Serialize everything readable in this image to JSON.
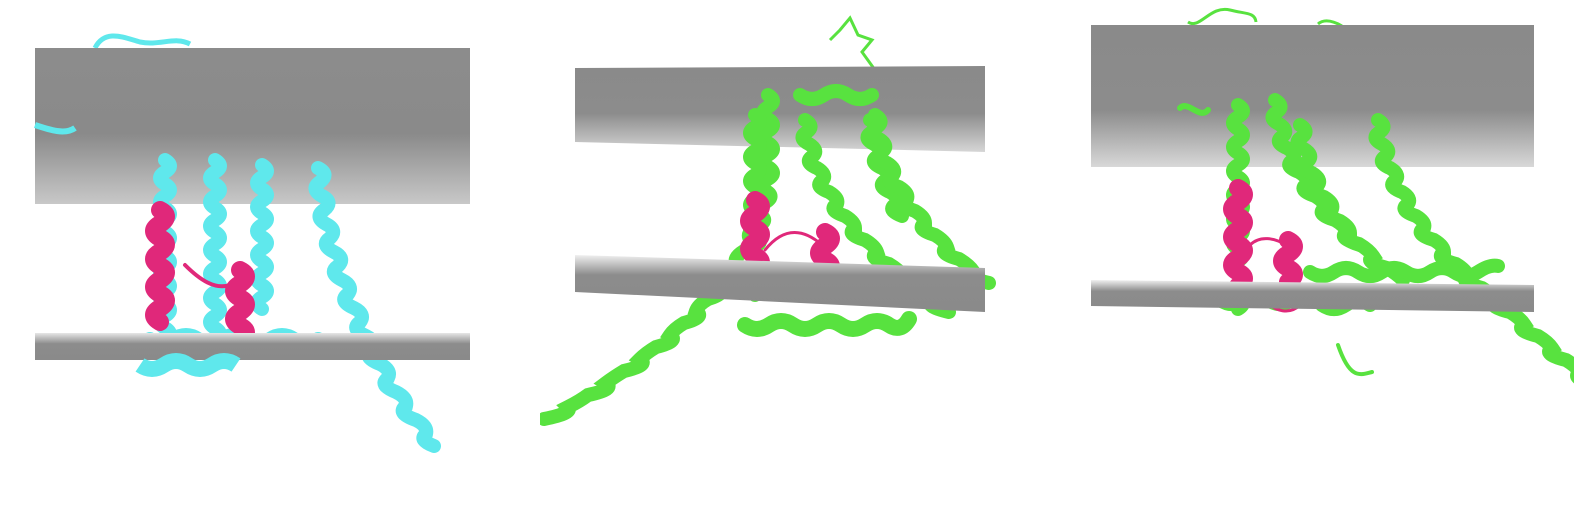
{
  "figure": {
    "panels": [
      {
        "id": "panel-1",
        "protein_color": "#5fe8ec",
        "highlight_color": "#e0287a",
        "membrane_color": "#8a8a8a"
      },
      {
        "id": "panel-2",
        "protein_color": "#58e23f",
        "highlight_color": "#e0287a",
        "membrane_color": "#8a8a8a"
      },
      {
        "id": "panel-3",
        "protein_color": "#58e23f",
        "highlight_color": "#e0287a",
        "membrane_color": "#8a8a8a"
      }
    ]
  }
}
